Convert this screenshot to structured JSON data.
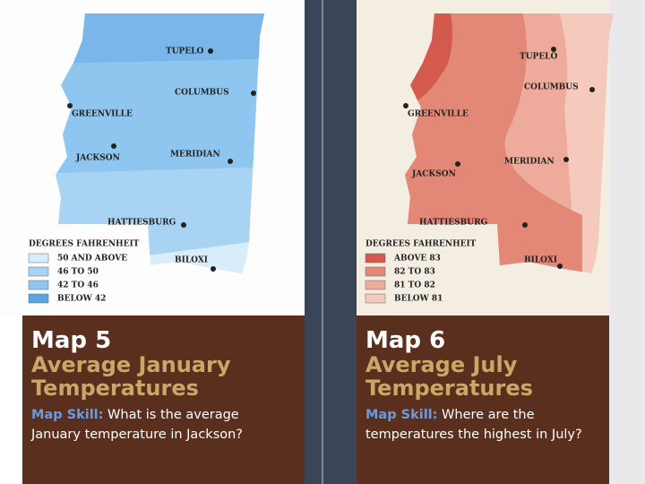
{
  "maps": [
    {
      "cities": [
        "TUPELO",
        "COLUMBUS",
        "GREENVILLE",
        "JACKSON",
        "MERIDIAN",
        "HATTIESBURG",
        "BILOXI"
      ],
      "legend": {
        "title": "DEGREES FAHRENHEIT",
        "items": [
          "50 AND ABOVE",
          "46 TO 50",
          "42 TO 46",
          "BELOW 42"
        ]
      },
      "caption": {
        "number": "Map 5",
        "title": "Average January Temperatures",
        "skill_label": "Map Skill:",
        "question": "What is the average January temperature in Jackson?"
      }
    },
    {
      "cities": [
        "TUPELO",
        "COLUMBUS",
        "GREENVILLE",
        "JACKSON",
        "MERIDIAN",
        "HATTIESBURG",
        "BILOXI"
      ],
      "legend": {
        "title": "DEGREES FAHRENHEIT",
        "items": [
          "ABOVE 83",
          "82 TO 83",
          "81 TO 82",
          "BELOW 81"
        ]
      },
      "caption": {
        "number": "Map 6",
        "title": "Average July Temperatures",
        "skill_label": "Map Skill:",
        "question": "Where are the temperatures the highest in July?"
      }
    }
  ]
}
